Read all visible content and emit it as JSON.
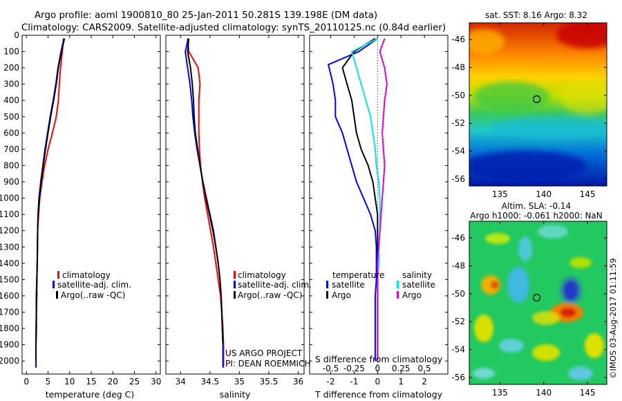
{
  "header": {
    "line1": "Argo profile: aoml 1900810_80 25-Jan-2011 50.281S 139.198E (DM data)",
    "line2": "Climatology: CARS2009. Satellite-adjusted climatology: synTS_20110125.nc (0.84d earlier)"
  },
  "colors": {
    "climatology": "#ff0000",
    "satellite": "#0000ff",
    "argo": "#000000",
    "sat_salinity": "#00e5e5",
    "argo_salinity": "#e000e0"
  },
  "chart_data": [
    {
      "type": "line",
      "id": "temperature",
      "xlabel": "temperature (deg C)",
      "ylabel": "",
      "xlim": [
        -1,
        31
      ],
      "ylim": [
        2080,
        0
      ],
      "xticks": [
        0,
        5,
        10,
        15,
        20,
        25,
        30
      ],
      "yticks": [
        0,
        100,
        200,
        300,
        400,
        500,
        600,
        700,
        800,
        900,
        1000,
        1100,
        1200,
        1300,
        1400,
        1500,
        1600,
        1700,
        1800,
        1900,
        2000
      ],
      "legend": {
        "placement": "lower-right",
        "entries": [
          "climatology",
          "satellite-adj. clim.",
          "Argo(..raw -QC)"
        ]
      },
      "series": [
        {
          "name": "climatology",
          "color": "red",
          "x": [
            8.6,
            8.3,
            7.9,
            7.6,
            7.4,
            6.9,
            6.0,
            5.0,
            4.2,
            3.6,
            3.1,
            2.8,
            2.6,
            2.5,
            2.4,
            2.3,
            2.3,
            2.2,
            2.2,
            2.2,
            2.2
          ],
          "y": [
            20,
            100,
            200,
            300,
            400,
            500,
            600,
            700,
            800,
            900,
            1000,
            1100,
            1200,
            1400,
            1500,
            1600,
            1700,
            1800,
            1900,
            2000,
            2040
          ]
        },
        {
          "name": "satellite-adj. clim.",
          "color": "blue",
          "x": [
            8.7,
            8.0,
            7.3,
            6.8,
            6.2,
            5.5,
            4.9,
            4.3,
            3.8,
            3.3,
            2.9,
            2.7,
            2.6,
            2.5,
            2.4,
            2.4,
            2.3,
            2.3,
            2.2,
            2.2,
            2.2
          ],
          "y": [
            20,
            100,
            200,
            300,
            400,
            500,
            600,
            700,
            800,
            900,
            1000,
            1100,
            1200,
            1400,
            1500,
            1600,
            1700,
            1800,
            1900,
            2000,
            2040
          ]
        },
        {
          "name": "Argo(..raw -QC)",
          "color": "black",
          "x": [
            8.8,
            8.1,
            7.4,
            6.9,
            6.3,
            5.6,
            5.0,
            4.4,
            3.9,
            3.4,
            3.0,
            2.7,
            2.6,
            2.5,
            2.4,
            2.3,
            2.3,
            2.3,
            2.2,
            2.2
          ],
          "y": [
            20,
            100,
            200,
            300,
            400,
            500,
            600,
            700,
            800,
            900,
            1000,
            1100,
            1200,
            1400,
            1500,
            1600,
            1700,
            1800,
            1900,
            2000
          ]
        }
      ]
    },
    {
      "type": "line",
      "id": "salinity",
      "xlabel": "salinity",
      "ylabel": "",
      "xlim": [
        33.75,
        36.1
      ],
      "ylim": [
        2080,
        0
      ],
      "xticks": [
        34,
        34.5,
        35,
        35.5,
        36
      ],
      "legend": {
        "placement": "lower-right",
        "entries": [
          "climatology",
          "satellite-adj. clim.",
          "Argo(..raw -QC)"
        ]
      },
      "annotation": [
        "US ARGO PROJECT",
        "PI: DEAN ROEMMICH"
      ],
      "series": [
        {
          "name": "climatology",
          "color": "red",
          "x": [
            34.12,
            34.14,
            34.3,
            34.33,
            34.31,
            34.31,
            34.31,
            34.32,
            34.34,
            34.37,
            34.41,
            34.46,
            34.51,
            34.56,
            34.6,
            34.64,
            34.68,
            34.7,
            34.72,
            34.73,
            34.73
          ],
          "y": [
            20,
            100,
            200,
            300,
            400,
            500,
            600,
            700,
            800,
            900,
            1000,
            1100,
            1200,
            1300,
            1400,
            1500,
            1600,
            1700,
            1800,
            1900,
            2040
          ]
        },
        {
          "name": "satellite-adj. clim.",
          "color": "blue",
          "x": [
            34.13,
            34.08,
            34.12,
            34.16,
            34.19,
            34.21,
            34.24,
            34.28,
            34.33,
            34.38,
            34.44,
            34.5,
            34.56,
            34.6,
            34.64,
            34.67,
            34.69,
            34.7,
            34.71,
            34.72,
            34.72
          ],
          "y": [
            20,
            100,
            200,
            300,
            400,
            500,
            600,
            700,
            800,
            900,
            1000,
            1100,
            1200,
            1300,
            1400,
            1500,
            1600,
            1700,
            1800,
            1900,
            2040
          ]
        },
        {
          "name": "Argo(..raw -QC)",
          "color": "black",
          "x": [
            34.14,
            34.12,
            34.17,
            34.2,
            34.22,
            34.23,
            34.25,
            34.29,
            34.33,
            34.38,
            34.43,
            34.49,
            34.55,
            34.6,
            34.64,
            34.67,
            34.69,
            34.7,
            34.71,
            34.72
          ],
          "y": [
            20,
            100,
            200,
            300,
            400,
            500,
            600,
            700,
            800,
            900,
            1000,
            1100,
            1200,
            1300,
            1400,
            1500,
            1600,
            1700,
            1800,
            1900
          ]
        }
      ]
    },
    {
      "type": "line",
      "id": "difference",
      "xlabel": "T difference from climatology",
      "secondary_xlabel": "S difference from climatology",
      "xlim": [
        -2.9,
        3.0
      ],
      "ylim": [
        2080,
        0
      ],
      "xticks": [
        -2,
        -1,
        0,
        1,
        2
      ],
      "secondary_xticks": [
        "-0.5",
        "-0.25",
        "0",
        "0.25",
        "0.5"
      ],
      "secondary_xtick_pos": [
        -2,
        -1,
        0,
        1,
        2
      ],
      "legend": {
        "placement": "lower-right",
        "headers": [
          "temperature",
          "salinity"
        ],
        "entries": [
          "satellite",
          "Argo",
          "satellite",
          "Argo"
        ]
      },
      "series": [
        {
          "name": "satellite",
          "quantity": "temperature",
          "color": "blue",
          "x": [
            0.0,
            -0.8,
            -2.1,
            -1.9,
            -1.8,
            -1.8,
            -1.5,
            -1.3,
            -1.1,
            -0.9,
            -0.6,
            -0.3,
            -0.1,
            -0.05,
            -0.05,
            -0.05,
            -0.1,
            -0.1,
            -0.1,
            -0.1,
            -0.1
          ],
          "y": [
            20,
            100,
            180,
            300,
            400,
            500,
            600,
            700,
            800,
            900,
            1000,
            1100,
            1200,
            1300,
            1400,
            1500,
            1600,
            1700,
            1800,
            1900,
            2000
          ]
        },
        {
          "name": "Argo",
          "quantity": "temperature",
          "color": "black",
          "x": [
            -0.1,
            -1.0,
            -1.5,
            -1.3,
            -1.1,
            -1.0,
            -0.9,
            -0.7,
            -0.4,
            -0.2,
            -0.1,
            0.0,
            0.0,
            0.0,
            0.0,
            0.0,
            0.0,
            0.0,
            0.0
          ],
          "y": [
            20,
            100,
            200,
            300,
            400,
            500,
            600,
            700,
            800,
            900,
            1000,
            1100,
            1200,
            1300,
            1400,
            1500,
            1600,
            1800,
            2000
          ]
        },
        {
          "name": "satellite",
          "quantity": "salinity",
          "color": "cyan",
          "x": [
            0.0,
            -1.1,
            -0.9,
            -0.7,
            -0.5,
            -0.3,
            -0.2,
            -0.1,
            -0.05,
            0.05,
            0.1,
            0.1,
            0.1,
            0.05,
            0.05,
            0.0,
            0.0,
            0.0,
            0.0,
            0.0
          ],
          "y": [
            20,
            100,
            200,
            300,
            400,
            500,
            600,
            700,
            800,
            900,
            1000,
            1100,
            1200,
            1300,
            1400,
            1500,
            1600,
            1700,
            1800,
            2000
          ]
        },
        {
          "name": "Argo",
          "quantity": "salinity",
          "color": "magenta",
          "x": [
            0.3,
            0.1,
            0.3,
            0.4,
            0.3,
            0.25,
            0.2,
            0.25,
            0.3,
            0.25,
            0.2,
            0.15,
            0.1,
            0.05,
            0.0,
            0.0,
            0.0,
            0.0,
            0.0
          ],
          "y": [
            20,
            100,
            200,
            300,
            400,
            500,
            600,
            700,
            800,
            900,
            1000,
            1100,
            1200,
            1300,
            1400,
            1500,
            1600,
            1800,
            2000
          ]
        }
      ]
    },
    {
      "type": "heatmap",
      "id": "sst_map",
      "title": "sat. SST: 8.16 Argo: 8.32",
      "xlim": [
        131.5,
        147.2
      ],
      "ylim": [
        -56.5,
        -44.8
      ],
      "xticks": [
        135,
        140,
        145
      ],
      "yticks": [
        -46,
        -48,
        -50,
        -52,
        -54,
        -56
      ],
      "marker": {
        "lon": 139.2,
        "lat": -50.28
      }
    },
    {
      "type": "heatmap",
      "id": "sla_map",
      "title": "Altim. SLA: -0.14",
      "subtitle": "Argo h1000: -0.061 h2000: NaN",
      "xlim": [
        131.5,
        147.2
      ],
      "ylim": [
        -56.5,
        -44.8
      ],
      "xticks": [
        135,
        140,
        145
      ],
      "yticks": [
        -46,
        -48,
        -50,
        -52,
        -54,
        -56
      ],
      "marker": {
        "lon": 139.2,
        "lat": -50.28
      }
    }
  ],
  "footer_stamp": "©IMOS 03-Aug-2017 01:11:59"
}
